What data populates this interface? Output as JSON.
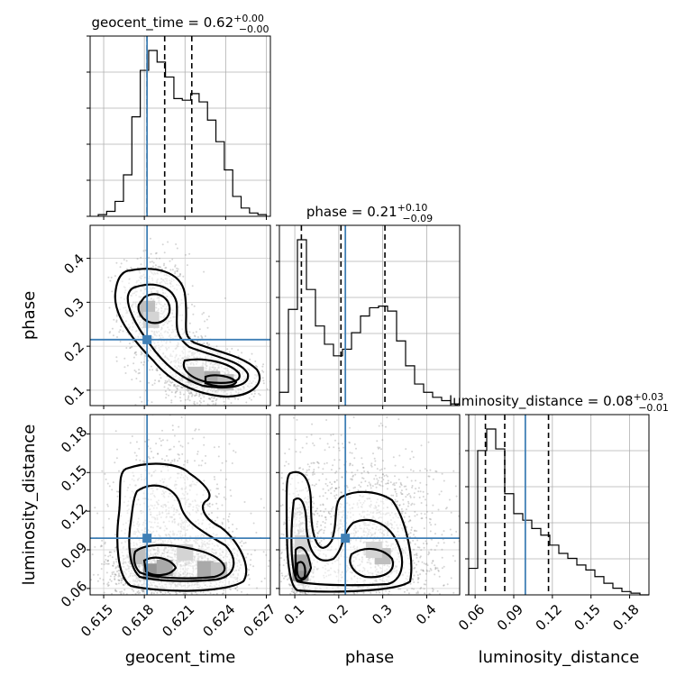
{
  "chart_data": {
    "type": "corner",
    "parameters": [
      "geocent_time",
      "phase",
      "luminosity_distance"
    ],
    "truth": {
      "geocent_time": 0.6182,
      "phase": 0.215,
      "luminosity_distance": 0.099
    },
    "truth_color": "#3f7fb5",
    "ranges": {
      "geocent_time": [
        0.614,
        0.6273
      ],
      "phase": [
        0.065,
        0.475
      ],
      "luminosity_distance": [
        0.055,
        0.195
      ]
    },
    "ticks": {
      "geocent_time": [
        0.615,
        0.618,
        0.621,
        0.624,
        0.627
      ],
      "phase": [
        0.1,
        0.2,
        0.3,
        0.4
      ],
      "luminosity_distance": [
        0.06,
        0.09,
        0.12,
        0.15,
        0.18
      ]
    },
    "tick_labels": {
      "geocent_time": [
        "0.615",
        "0.618",
        "0.621",
        "0.624",
        "0.627"
      ],
      "phase": [
        "0.1",
        "0.2",
        "0.3",
        "0.4"
      ],
      "luminosity_distance": [
        "0.06",
        "0.09",
        "0.12",
        "0.15",
        "0.18"
      ]
    },
    "axis_labels": {
      "x": [
        "geocent_time",
        "phase",
        "luminosity_distance"
      ],
      "y": [
        "phase",
        "luminosity_distance"
      ]
    },
    "titles": [
      {
        "param": "geocent_time",
        "prefix": "geocent_time = 0.62",
        "plus": "+0.00",
        "minus": "−0.00"
      },
      {
        "param": "phase",
        "prefix": "phase = 0.21",
        "plus": "+0.10",
        "minus": "−0.09"
      },
      {
        "param": "luminosity_distance",
        "prefix": "luminosity_distance = 0.08",
        "plus": "+0.03",
        "minus": "−0.01"
      }
    ],
    "quantiles": {
      "geocent_time": [
        0.6182,
        0.6195,
        0.6215
      ],
      "phase": [
        0.115,
        0.205,
        0.305
      ],
      "luminosity_distance": [
        0.068,
        0.083,
        0.117
      ]
    },
    "histograms": {
      "geocent_time": {
        "edges": [
          0.6146,
          0.61522,
          0.61584,
          0.61646,
          0.61708,
          0.6177,
          0.61832,
          0.61894,
          0.61956,
          0.62018,
          0.6208,
          0.62142,
          0.62204,
          0.62266,
          0.62328,
          0.6239,
          0.62452,
          0.62514,
          0.62576,
          0.62638,
          0.627
        ],
        "counts": [
          0.01,
          0.03,
          0.09,
          0.25,
          0.6,
          0.88,
          1.0,
          0.93,
          0.84,
          0.71,
          0.7,
          0.74,
          0.69,
          0.58,
          0.45,
          0.28,
          0.12,
          0.05,
          0.02,
          0.01
        ]
      },
      "phase": {
        "edges": [
          0.065,
          0.0855,
          0.106,
          0.1265,
          0.147,
          0.1675,
          0.188,
          0.2085,
          0.229,
          0.2495,
          0.27,
          0.2905,
          0.311,
          0.3315,
          0.352,
          0.3725,
          0.393,
          0.4135,
          0.434,
          0.4545,
          0.475
        ],
        "counts": [
          0.08,
          0.58,
          1.0,
          0.7,
          0.48,
          0.37,
          0.3,
          0.34,
          0.44,
          0.54,
          0.59,
          0.6,
          0.57,
          0.39,
          0.24,
          0.13,
          0.08,
          0.05,
          0.03,
          0.01
        ]
      },
      "luminosity_distance": {
        "edges": [
          0.055,
          0.062,
          0.069,
          0.076,
          0.083,
          0.09,
          0.097,
          0.104,
          0.111,
          0.118,
          0.125,
          0.132,
          0.139,
          0.146,
          0.153,
          0.16,
          0.167,
          0.174,
          0.181,
          0.188,
          0.195
        ],
        "counts": [
          0.16,
          0.87,
          1.0,
          0.88,
          0.61,
          0.49,
          0.45,
          0.4,
          0.36,
          0.3,
          0.25,
          0.22,
          0.18,
          0.15,
          0.11,
          0.07,
          0.04,
          0.02,
          0.01,
          0.0
        ]
      }
    },
    "grid": true
  }
}
